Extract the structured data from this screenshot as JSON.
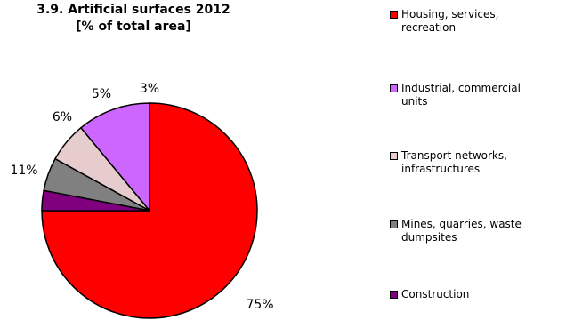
{
  "chart_data": {
    "type": "pie",
    "title_lines": [
      "3.9. Artificial surfaces 2012",
      "[% of total area]"
    ],
    "slices": [
      {
        "name": "Housing, services,\nrecreation",
        "value": 75,
        "label": "75%",
        "color": "#ff0000"
      },
      {
        "name": " Industrial, commercial\nunits",
        "value": 11,
        "label": "11%",
        "color": "#cc66ff"
      },
      {
        "name": "Transport networks,\ninfrastructures",
        "value": 6,
        "label": "6%",
        "color": "#e6cccc"
      },
      {
        "name": "Mines, quarries, waste\ndumpsites",
        "value": 5,
        "label": "5%",
        "color": "#808080"
      },
      {
        "name": "Construction",
        "value": 3,
        "label": "3%",
        "color": "#800080"
      }
    ],
    "start_angle": "12 o'clock",
    "direction": "counter-clockwise",
    "legend_position": "right"
  }
}
